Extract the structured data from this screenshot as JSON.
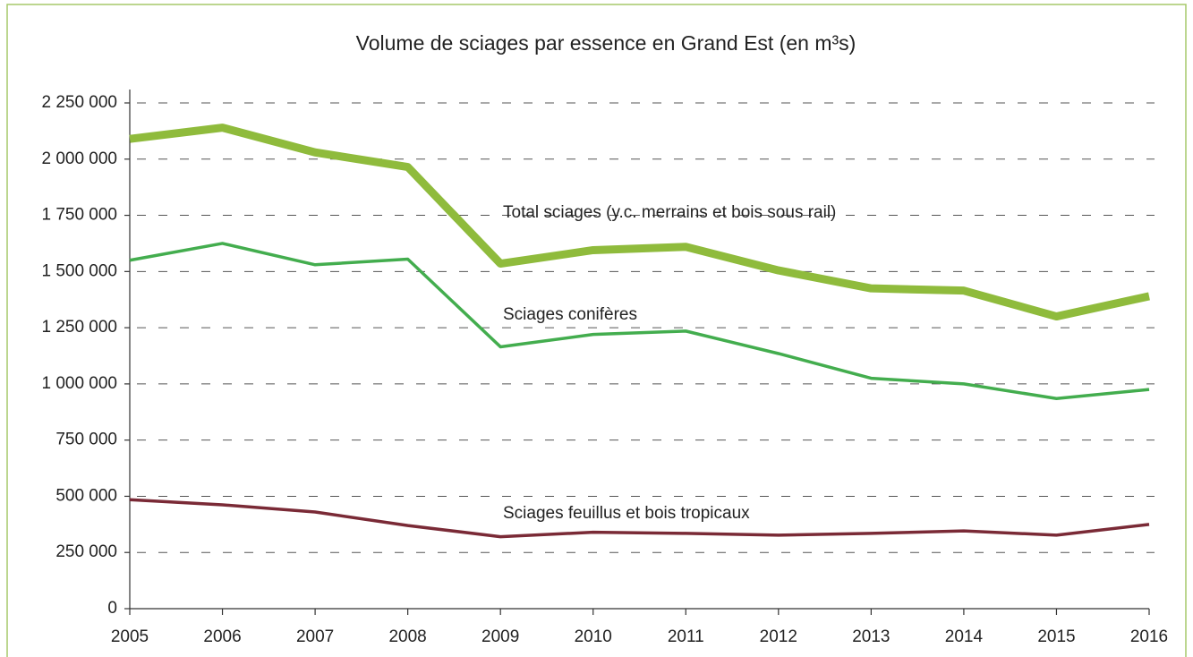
{
  "chart_data": {
    "type": "line",
    "title": "Volume de sciages par essence en Grand Est (en m³s)",
    "categories": [
      "2005",
      "2006",
      "2007",
      "2008",
      "2009",
      "2010",
      "2011",
      "2012",
      "2013",
      "2014",
      "2015",
      "2016"
    ],
    "series": [
      {
        "name": "Total sciages (y.c. merrains et bois sous rail)",
        "color": "#8fbb3c",
        "values": [
          2090000,
          2140000,
          2030000,
          1965000,
          1535000,
          1595000,
          1610000,
          1505000,
          1425000,
          1415000,
          1300000,
          1390000
        ]
      },
      {
        "name": "Sciages conifères",
        "color": "#43ad4e",
        "values": [
          1550000,
          1625000,
          1530000,
          1555000,
          1165000,
          1220000,
          1235000,
          1135000,
          1025000,
          1000000,
          935000,
          975000
        ]
      },
      {
        "name": "Sciages feuillus et bois tropicaux",
        "color": "#7a2a36",
        "values": [
          485000,
          462000,
          430000,
          370000,
          320000,
          340000,
          335000,
          327000,
          335000,
          346000,
          327000,
          375000
        ]
      }
    ],
    "ylim": [
      0,
      2250000
    ],
    "yticks": [
      0,
      {
        "value": 250000,
        "label": "250 000"
      },
      {
        "value": 500000,
        "label": "500 000"
      },
      {
        "value": 750000,
        "label": "750 000"
      },
      {
        "value": 1000000,
        "label": "1 000 000"
      },
      {
        "value": 1250000,
        "label": "1 250 000"
      },
      {
        "value": 1500000,
        "label": "1 500 000"
      },
      {
        "value": 1750000,
        "label": "1 750 000"
      },
      {
        "value": 2000000,
        "label": "2 000 000"
      },
      {
        "value": 2250000,
        "label": "2 250 000"
      }
    ],
    "grid": true
  }
}
